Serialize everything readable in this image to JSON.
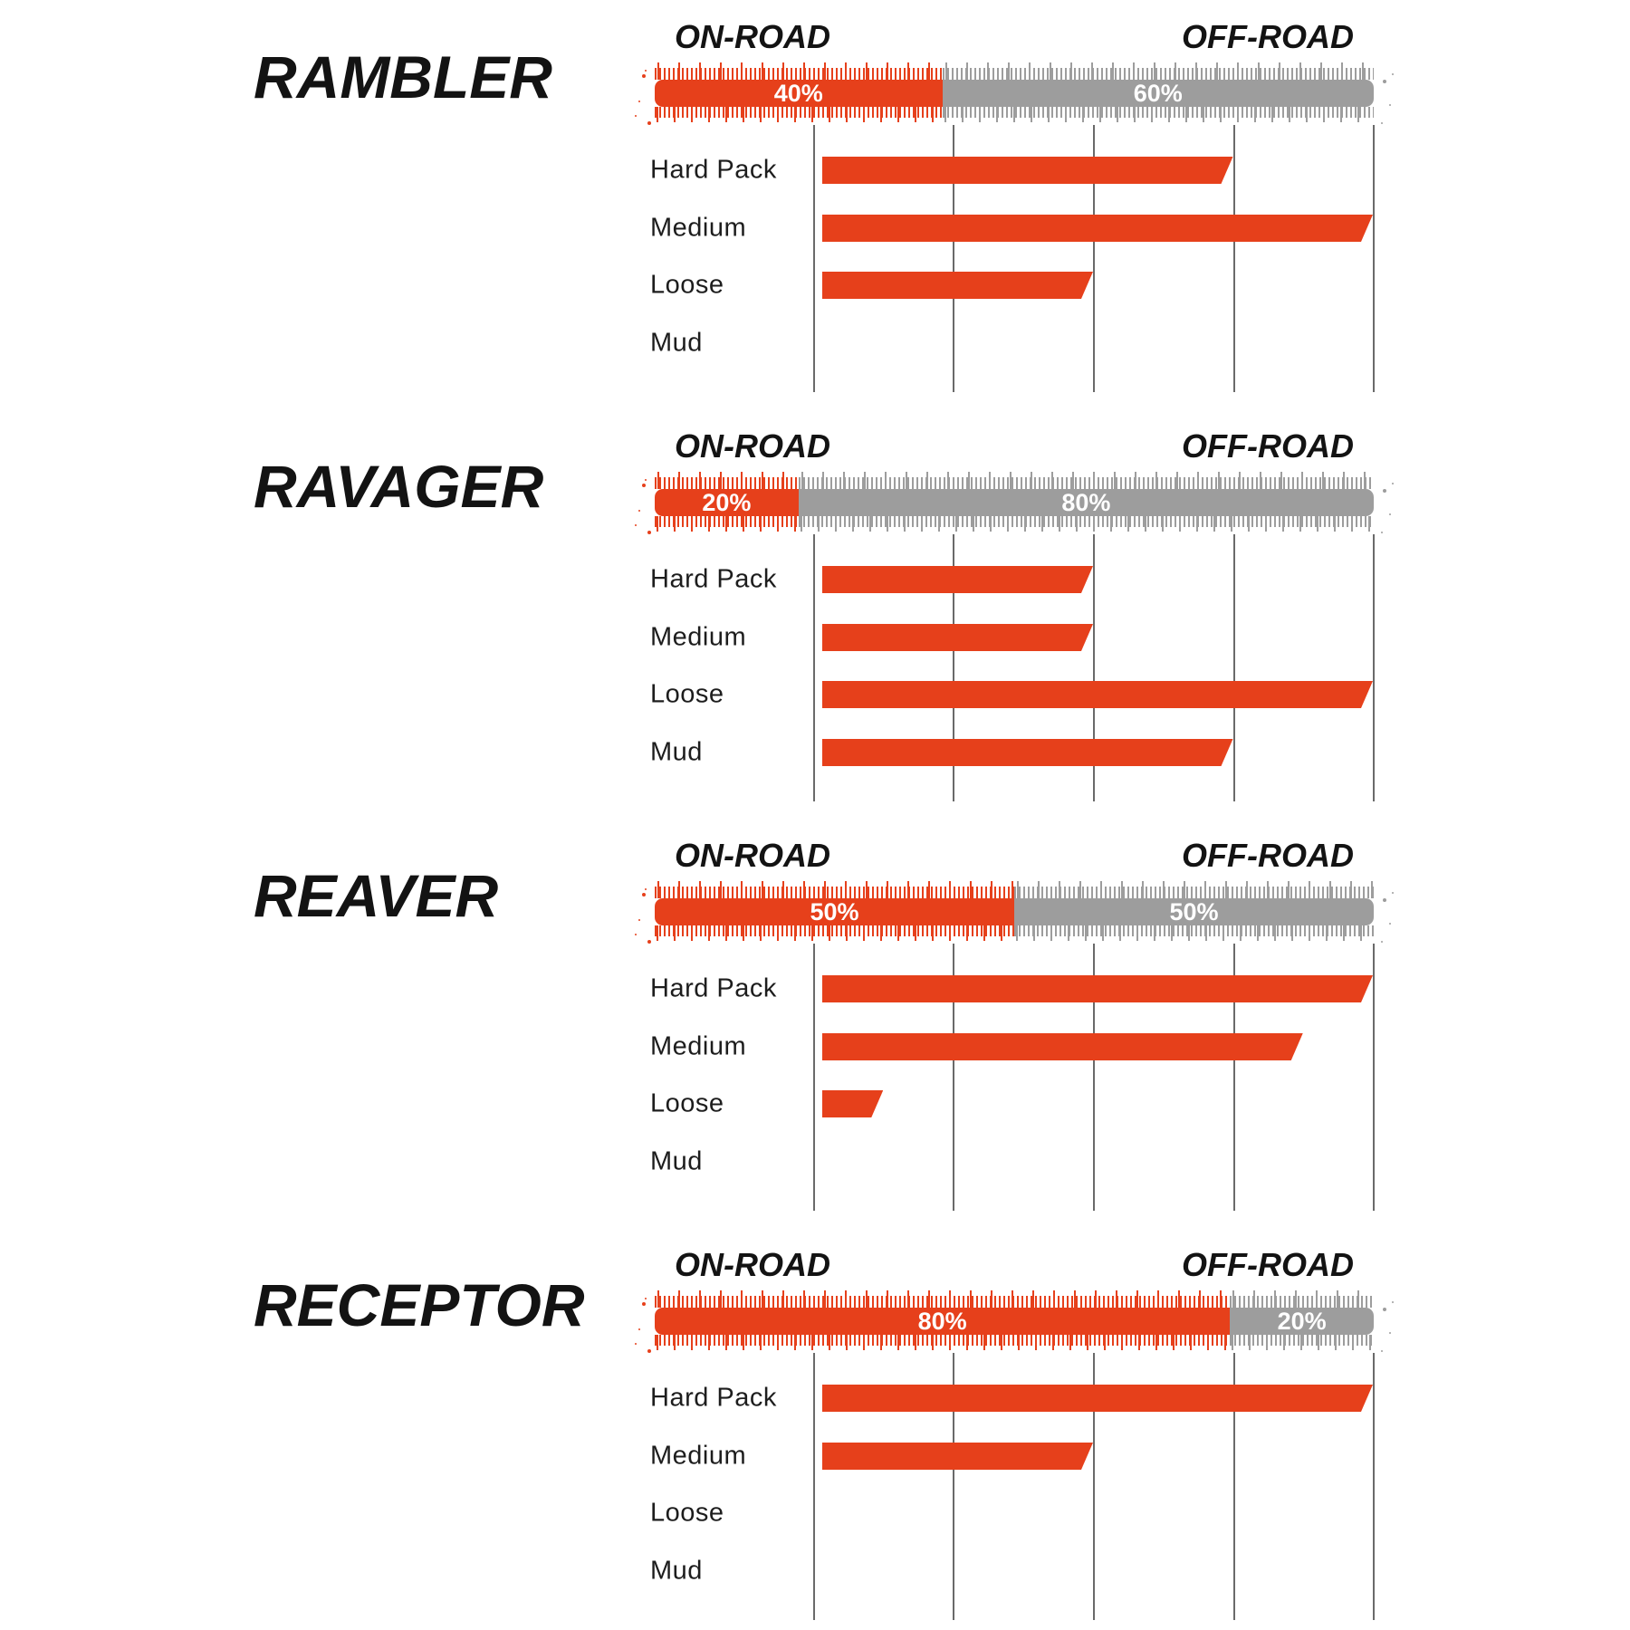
{
  "page": {
    "background": "#ffffff"
  },
  "colors": {
    "accent_red": "#E6401B",
    "neutral_gray": "#9D9D9D",
    "grid_line": "#6A6A6A",
    "title_text": "#131313",
    "label_text": "#1D1D1D",
    "pct_text": "#FFFFFF"
  },
  "labels": {
    "on_road": "ON-ROAD",
    "off_road": "OFF-ROAD",
    "terrains": [
      "Hard Pack",
      "Medium",
      "Loose",
      "Mud"
    ]
  },
  "axis": {
    "rating_max": 4,
    "gridline_count": 5,
    "grid_on": true
  },
  "chart_data": [
    {
      "type": "bar",
      "title": "RAMBLER",
      "on_road_pct": 40,
      "off_road_pct": 60,
      "on_road_label": "40%",
      "off_road_label": "60%",
      "categories": [
        "Hard Pack",
        "Medium",
        "Loose",
        "Mud"
      ],
      "values": [
        3,
        4,
        2,
        0
      ],
      "xlim": [
        0,
        4
      ]
    },
    {
      "type": "bar",
      "title": "RAVAGER",
      "on_road_pct": 20,
      "off_road_pct": 80,
      "on_road_label": "20%",
      "off_road_label": "80%",
      "categories": [
        "Hard Pack",
        "Medium",
        "Loose",
        "Mud"
      ],
      "values": [
        2,
        2,
        4,
        3
      ],
      "xlim": [
        0,
        4
      ]
    },
    {
      "type": "bar",
      "title": "REAVER",
      "on_road_pct": 50,
      "off_road_pct": 50,
      "on_road_label": "50%",
      "off_road_label": "50%",
      "categories": [
        "Hard Pack",
        "Medium",
        "Loose",
        "Mud"
      ],
      "values": [
        4,
        3.5,
        0.5,
        0
      ],
      "xlim": [
        0,
        4
      ]
    },
    {
      "type": "bar",
      "title": "RECEPTOR",
      "on_road_pct": 80,
      "off_road_pct": 20,
      "on_road_label": "80%",
      "off_road_label": "20%",
      "categories": [
        "Hard Pack",
        "Medium",
        "Loose",
        "Mud"
      ],
      "values": [
        4,
        2,
        0,
        0
      ],
      "xlim": [
        0,
        4
      ]
    }
  ]
}
